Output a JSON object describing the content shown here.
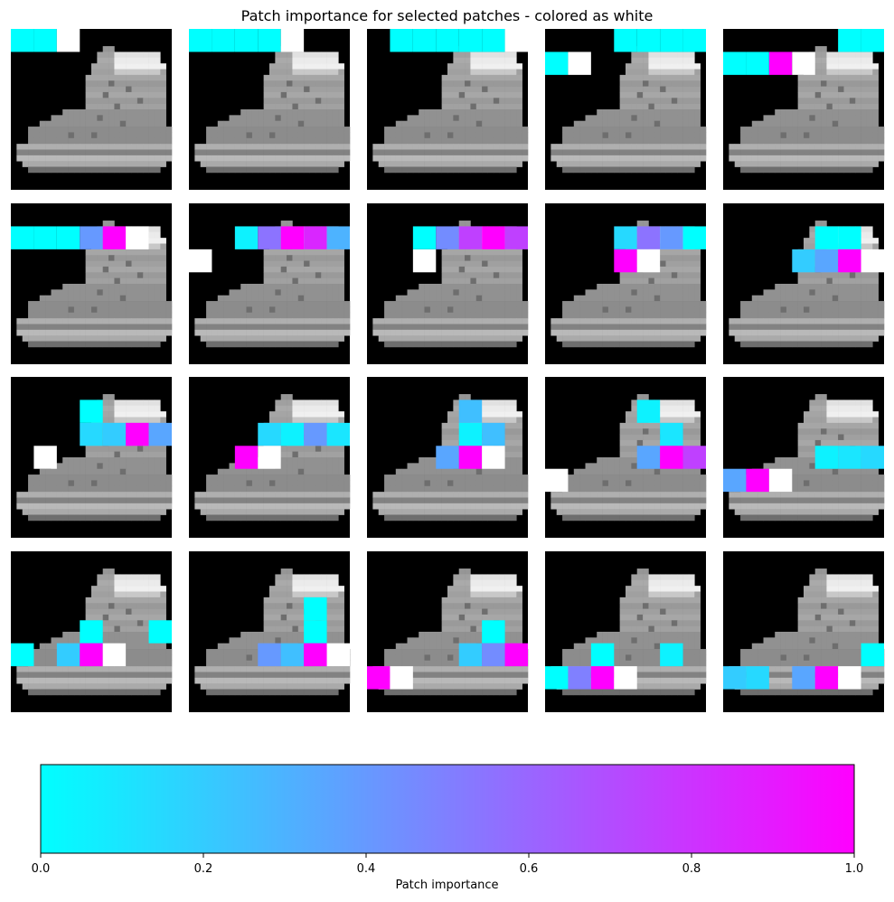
{
  "title": "Patch importance for selected patches - colored as white",
  "colorbar": {
    "label": "Patch importance",
    "ticks": [
      "0.0",
      "0.2",
      "0.4",
      "0.6",
      "0.8",
      "1.0"
    ],
    "colormap": "cool",
    "start_color": "#00ffff",
    "end_color": "#ff00ff",
    "range": [
      0,
      1
    ]
  },
  "chart_data": {
    "type": "heatmap",
    "title": "Patch importance for selected patches - colored as white",
    "description_grid": {
      "rows": 4,
      "cols": 5,
      "patch_grid": 7
    },
    "colorbar_label": "Patch importance",
    "vlim": [
      0,
      1
    ],
    "panels": [
      {
        "selected": [
          0,
          2
        ],
        "patches": [
          [
            0,
            0,
            0.0
          ],
          [
            0,
            1,
            0.0
          ]
        ]
      },
      {
        "selected": [
          0,
          4
        ],
        "patches": [
          [
            0,
            0,
            0.0
          ],
          [
            0,
            1,
            0.0
          ],
          [
            0,
            2,
            0.0
          ],
          [
            0,
            3,
            0.0
          ]
        ]
      },
      {
        "selected": [
          0,
          6
        ],
        "patches": [
          [
            0,
            1,
            0.0
          ],
          [
            0,
            2,
            0.0
          ],
          [
            0,
            3,
            0.0
          ],
          [
            0,
            4,
            0.0
          ],
          [
            0,
            5,
            0.0
          ]
        ]
      },
      {
        "selected": [
          1,
          1
        ],
        "patches": [
          [
            0,
            3,
            0.0
          ],
          [
            0,
            4,
            0.0
          ],
          [
            0,
            5,
            0.0
          ],
          [
            0,
            6,
            0.0
          ],
          [
            1,
            0,
            0.0
          ]
        ]
      },
      {
        "selected": [
          1,
          3
        ],
        "patches": [
          [
            0,
            5,
            0.0
          ],
          [
            0,
            6,
            0.0
          ],
          [
            1,
            0,
            0.0
          ],
          [
            1,
            1,
            0.0
          ],
          [
            1,
            2,
            1.0
          ]
        ]
      },
      {
        "selected": [
          1,
          5
        ],
        "patches": [
          [
            1,
            0,
            0.0
          ],
          [
            1,
            1,
            0.0
          ],
          [
            1,
            2,
            0.0
          ],
          [
            1,
            3,
            0.4
          ],
          [
            1,
            4,
            1.0
          ]
        ]
      },
      {
        "selected": [
          2,
          0
        ],
        "patches": [
          [
            1,
            2,
            0.05
          ],
          [
            1,
            3,
            0.55
          ],
          [
            1,
            4,
            1.0
          ],
          [
            1,
            5,
            0.85
          ],
          [
            1,
            6,
            0.3
          ]
        ]
      },
      {
        "selected": [
          2,
          2
        ],
        "patches": [
          [
            1,
            2,
            0.0
          ],
          [
            1,
            3,
            0.45
          ],
          [
            1,
            4,
            0.75
          ],
          [
            1,
            5,
            1.0
          ],
          [
            1,
            6,
            0.75
          ]
        ]
      },
      {
        "selected": [
          2,
          4
        ],
        "patches": [
          [
            1,
            3,
            0.15
          ],
          [
            1,
            4,
            0.55
          ],
          [
            1,
            5,
            0.4
          ],
          [
            1,
            6,
            0.0
          ],
          [
            2,
            3,
            1.0
          ]
        ]
      },
      {
        "selected": [
          2,
          6
        ],
        "patches": [
          [
            1,
            4,
            0.0
          ],
          [
            1,
            5,
            0.0
          ],
          [
            2,
            3,
            0.2
          ],
          [
            2,
            4,
            0.35
          ],
          [
            2,
            5,
            1.0
          ]
        ]
      },
      {
        "selected": [
          3,
          1
        ],
        "patches": [
          [
            1,
            3,
            0.0
          ],
          [
            2,
            3,
            0.15
          ],
          [
            2,
            4,
            0.2
          ],
          [
            2,
            5,
            1.0
          ],
          [
            2,
            6,
            0.35
          ]
        ]
      },
      {
        "selected": [
          3,
          3
        ],
        "patches": [
          [
            2,
            3,
            0.15
          ],
          [
            2,
            4,
            0.05
          ],
          [
            2,
            5,
            0.4
          ],
          [
            2,
            6,
            0.1
          ],
          [
            3,
            2,
            1.0
          ]
        ]
      },
      {
        "selected": [
          3,
          5
        ],
        "patches": [
          [
            1,
            4,
            0.25
          ],
          [
            2,
            4,
            0.05
          ],
          [
            2,
            5,
            0.25
          ],
          [
            3,
            3,
            0.35
          ],
          [
            3,
            4,
            1.0
          ]
        ]
      },
      {
        "selected": [
          4,
          0
        ],
        "patches": [
          [
            1,
            4,
            0.05
          ],
          [
            2,
            5,
            0.1
          ],
          [
            3,
            4,
            0.35
          ],
          [
            3,
            5,
            1.0
          ],
          [
            3,
            6,
            0.75
          ]
        ]
      },
      {
        "selected": [
          4,
          2
        ],
        "patches": [
          [
            3,
            4,
            0.05
          ],
          [
            3,
            5,
            0.1
          ],
          [
            3,
            6,
            0.15
          ],
          [
            4,
            0,
            0.35
          ],
          [
            4,
            1,
            1.0
          ]
        ]
      },
      {
        "selected": [
          4,
          4
        ],
        "patches": [
          [
            3,
            3,
            0.0
          ],
          [
            3,
            6,
            0.0
          ],
          [
            4,
            0,
            0.0
          ],
          [
            4,
            2,
            0.2
          ],
          [
            4,
            3,
            1.0
          ]
        ]
      },
      {
        "selected": [
          4,
          6
        ],
        "patches": [
          [
            2,
            5,
            0.0
          ],
          [
            3,
            5,
            0.0
          ],
          [
            4,
            3,
            0.4
          ],
          [
            4,
            4,
            0.25
          ],
          [
            4,
            5,
            1.0
          ]
        ]
      },
      {
        "selected": [
          5,
          1
        ],
        "patches": [
          [
            3,
            5,
            0.0
          ],
          [
            4,
            4,
            0.2
          ],
          [
            4,
            5,
            0.45
          ],
          [
            4,
            6,
            1.0
          ],
          [
            5,
            0,
            1.0
          ]
        ]
      },
      {
        "selected": [
          5,
          3
        ],
        "patches": [
          [
            4,
            2,
            0.0
          ],
          [
            4,
            5,
            0.05
          ],
          [
            5,
            0,
            0.0
          ],
          [
            5,
            1,
            0.5
          ],
          [
            5,
            2,
            1.0
          ]
        ]
      },
      {
        "selected": [
          5,
          5
        ],
        "patches": [
          [
            4,
            6,
            0.0
          ],
          [
            5,
            0,
            0.2
          ],
          [
            5,
            1,
            0.15
          ],
          [
            5,
            3,
            0.35
          ],
          [
            5,
            4,
            1.0
          ]
        ]
      }
    ]
  }
}
